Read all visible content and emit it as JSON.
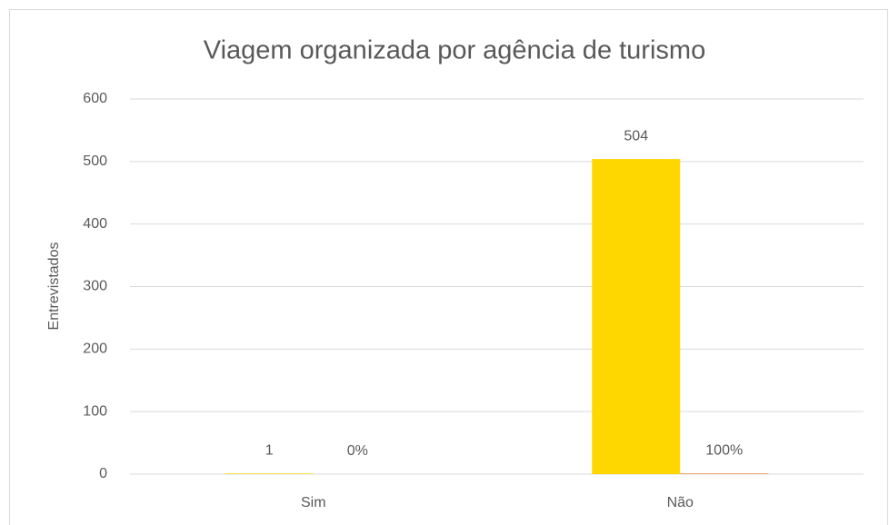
{
  "chart_data": {
    "type": "bar",
    "title": "Viagem organizada por agência de turismo",
    "y_label": "Entrevistados",
    "categories": [
      "Sim",
      "Não"
    ],
    "series": [
      {
        "color": "#ffd700",
        "values": [
          1,
          504
        ]
      },
      {
        "color": "#ed7d31",
        "values": [
          0,
          1
        ],
        "value_labels": [
          "0%",
          "100%"
        ]
      }
    ],
    "ylim": [
      0,
      600
    ],
    "yticks": [
      0,
      100,
      200,
      300,
      400,
      500,
      600
    ],
    "grid": true
  }
}
